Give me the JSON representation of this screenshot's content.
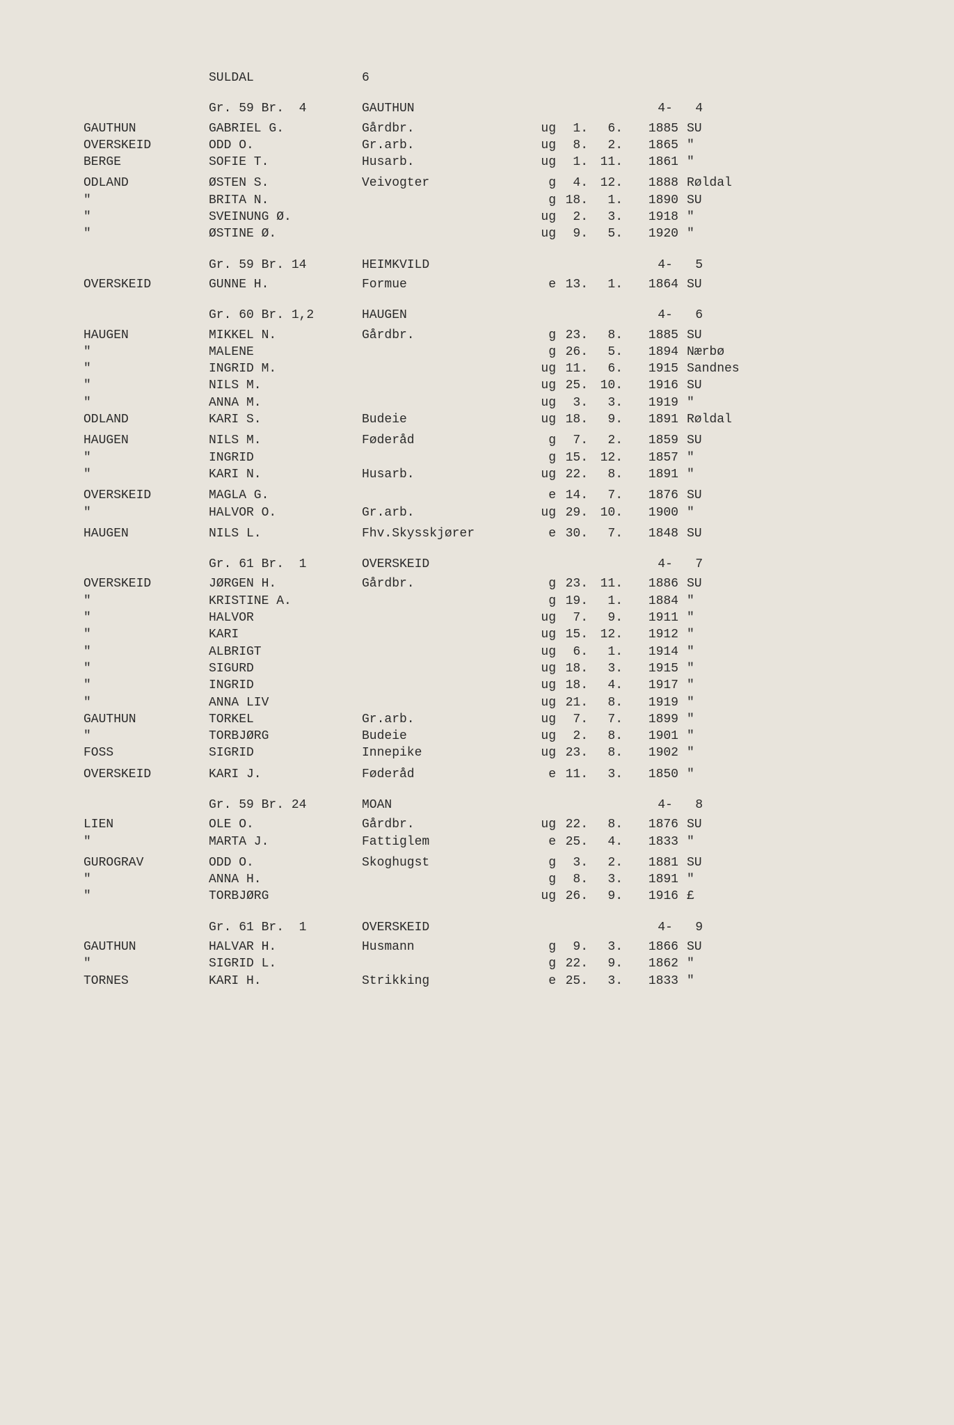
{
  "background_color": "#e8e4dc",
  "text_color": "#2a2a2a",
  "font_family": "Courier New",
  "font_size_pt": 14,
  "title": {
    "region": "SULDAL",
    "page_no": "6"
  },
  "sections": [
    {
      "header": {
        "gr": "Gr. 59 Br.  4",
        "loc": "GAUTHUN",
        "pg": "4-   4"
      },
      "groups": [
        {
          "rows": [
            {
              "surname": "GAUTHUN",
              "name": "GABRIEL G.",
              "occ": "Gårdbr.",
              "status": "ug",
              "day": "1.",
              "mon": "6.",
              "year": "1885",
              "place": "SU"
            },
            {
              "surname": "OVERSKEID",
              "name": "ODD O.",
              "occ": "Gr.arb.",
              "status": "ug",
              "day": "8.",
              "mon": "2.",
              "year": "1865",
              "place": "\""
            },
            {
              "surname": "BERGE",
              "name": "SOFIE T.",
              "occ": "Husarb.",
              "status": "ug",
              "day": "1.",
              "mon": "11.",
              "year": "1861",
              "place": "\""
            }
          ]
        },
        {
          "rows": [
            {
              "surname": "ODLAND",
              "name": "ØSTEN S.",
              "occ": "Veivogter",
              "status": "g",
              "day": "4.",
              "mon": "12.",
              "year": "1888",
              "place": "Røldal"
            },
            {
              "surname": "\"",
              "name": "BRITA N.",
              "occ": "",
              "status": "g",
              "day": "18.",
              "mon": "1.",
              "year": "1890",
              "place": "SU"
            },
            {
              "surname": "\"",
              "name": "SVEINUNG Ø.",
              "occ": "",
              "status": "ug",
              "day": "2.",
              "mon": "3.",
              "year": "1918",
              "place": "\""
            },
            {
              "surname": "\"",
              "name": "ØSTINE Ø.",
              "occ": "",
              "status": "ug",
              "day": "9.",
              "mon": "5.",
              "year": "1920",
              "place": "\""
            }
          ]
        }
      ]
    },
    {
      "header": {
        "gr": "Gr. 59 Br. 14",
        "loc": "HEIMKVILD",
        "pg": "4-   5"
      },
      "groups": [
        {
          "rows": [
            {
              "surname": "OVERSKEID",
              "name": "GUNNE H.",
              "occ": "Formue",
              "status": "e",
              "day": "13.",
              "mon": "1.",
              "year": "1864",
              "place": "SU"
            }
          ]
        }
      ]
    },
    {
      "header": {
        "gr": "Gr. 60 Br. 1,2",
        "loc": "HAUGEN",
        "pg": "4-   6"
      },
      "groups": [
        {
          "rows": [
            {
              "surname": "HAUGEN",
              "name": "MIKKEL N.",
              "occ": "Gårdbr.",
              "status": "g",
              "day": "23.",
              "mon": "8.",
              "year": "1885",
              "place": "SU"
            },
            {
              "surname": "\"",
              "name": "MALENE",
              "occ": "",
              "status": "g",
              "day": "26.",
              "mon": "5.",
              "year": "1894",
              "place": "Nærbø"
            },
            {
              "surname": "\"",
              "name": "INGRID M.",
              "occ": "",
              "status": "ug",
              "day": "11.",
              "mon": "6.",
              "year": "1915",
              "place": "Sandnes"
            },
            {
              "surname": "\"",
              "name": "NILS M.",
              "occ": "",
              "status": "ug",
              "day": "25.",
              "mon": "10.",
              "year": "1916",
              "place": "SU"
            },
            {
              "surname": "\"",
              "name": "ANNA M.",
              "occ": "",
              "status": "ug",
              "day": "3.",
              "mon": "3.",
              "year": "1919",
              "place": "\""
            },
            {
              "surname": "ODLAND",
              "name": "KARI S.",
              "occ": "Budeie",
              "status": "ug",
              "day": "18.",
              "mon": "9.",
              "year": "1891",
              "place": "Røldal"
            }
          ]
        },
        {
          "rows": [
            {
              "surname": "HAUGEN",
              "name": "NILS M.",
              "occ": "Føderåd",
              "status": "g",
              "day": "7.",
              "mon": "2.",
              "year": "1859",
              "place": "SU"
            },
            {
              "surname": "\"",
              "name": "INGRID",
              "occ": "",
              "status": "g",
              "day": "15.",
              "mon": "12.",
              "year": "1857",
              "place": "\""
            },
            {
              "surname": "\"",
              "name": "KARI N.",
              "occ": "Husarb.",
              "status": "ug",
              "day": "22.",
              "mon": "8.",
              "year": "1891",
              "place": "\""
            }
          ]
        },
        {
          "rows": [
            {
              "surname": "OVERSKEID",
              "name": "MAGLA G.",
              "occ": "",
              "status": "e",
              "day": "14.",
              "mon": "7.",
              "year": "1876",
              "place": "SU"
            },
            {
              "surname": "\"",
              "name": "HALVOR O.",
              "occ": "Gr.arb.",
              "status": "ug",
              "day": "29.",
              "mon": "10.",
              "year": "1900",
              "place": "\""
            }
          ]
        },
        {
          "rows": [
            {
              "surname": "HAUGEN",
              "name": "NILS L.",
              "occ": "Fhv.Skysskjører",
              "status": "e",
              "day": "30.",
              "mon": "7.",
              "year": "1848",
              "place": "SU"
            }
          ]
        }
      ]
    },
    {
      "header": {
        "gr": "Gr. 61 Br.  1",
        "loc": "OVERSKEID",
        "pg": "4-   7"
      },
      "groups": [
        {
          "rows": [
            {
              "surname": "OVERSKEID",
              "name": "JØRGEN H.",
              "occ": "Gårdbr.",
              "status": "g",
              "day": "23.",
              "mon": "11.",
              "year": "1886",
              "place": "SU"
            },
            {
              "surname": "\"",
              "name": "KRISTINE A.",
              "occ": "",
              "status": "g",
              "day": "19.",
              "mon": "1.",
              "year": "1884",
              "place": "\""
            },
            {
              "surname": "\"",
              "name": "HALVOR",
              "occ": "",
              "status": "ug",
              "day": "7.",
              "mon": "9.",
              "year": "1911",
              "place": "\""
            },
            {
              "surname": "\"",
              "name": "KARI",
              "occ": "",
              "status": "ug",
              "day": "15.",
              "mon": "12.",
              "year": "1912",
              "place": "\""
            },
            {
              "surname": "\"",
              "name": "ALBRIGT",
              "occ": "",
              "status": "ug",
              "day": "6.",
              "mon": "1.",
              "year": "1914",
              "place": "\""
            },
            {
              "surname": "\"",
              "name": "SIGURD",
              "occ": "",
              "status": "ug",
              "day": "18.",
              "mon": "3.",
              "year": "1915",
              "place": "\""
            },
            {
              "surname": "\"",
              "name": "INGRID",
              "occ": "",
              "status": "ug",
              "day": "18.",
              "mon": "4.",
              "year": "1917",
              "place": "\""
            },
            {
              "surname": "\"",
              "name": "ANNA LIV",
              "occ": "",
              "status": "ug",
              "day": "21.",
              "mon": "8.",
              "year": "1919",
              "place": "\""
            },
            {
              "surname": "GAUTHUN",
              "name": "TORKEL",
              "occ": "Gr.arb.",
              "status": "ug",
              "day": "7.",
              "mon": "7.",
              "year": "1899",
              "place": "\""
            },
            {
              "surname": "\"",
              "name": "TORBJØRG",
              "occ": "Budeie",
              "status": "ug",
              "day": "2.",
              "mon": "8.",
              "year": "1901",
              "place": "\""
            },
            {
              "surname": "FOSS",
              "name": "SIGRID",
              "occ": "Innepike",
              "status": "ug",
              "day": "23.",
              "mon": "8.",
              "year": "1902",
              "place": "\""
            }
          ]
        },
        {
          "rows": [
            {
              "surname": "OVERSKEID",
              "name": "KARI J.",
              "occ": "Føderåd",
              "status": "e",
              "day": "11.",
              "mon": "3.",
              "year": "1850",
              "place": "\""
            }
          ]
        }
      ]
    },
    {
      "header": {
        "gr": "Gr. 59 Br. 24",
        "loc": "MOAN",
        "pg": "4-   8"
      },
      "groups": [
        {
          "rows": [
            {
              "surname": "LIEN",
              "name": "OLE O.",
              "occ": "Gårdbr.",
              "status": "ug",
              "day": "22.",
              "mon": "8.",
              "year": "1876",
              "place": "SU"
            },
            {
              "surname": "\"",
              "name": "MARTA J.",
              "occ": "Fattiglem",
              "status": "e",
              "day": "25.",
              "mon": "4.",
              "year": "1833",
              "place": "\""
            }
          ]
        },
        {
          "rows": [
            {
              "surname": "GUROGRAV",
              "name": "ODD O.",
              "occ": "Skoghugst",
              "status": "g",
              "day": "3.",
              "mon": "2.",
              "year": "1881",
              "place": "SU"
            },
            {
              "surname": "\"",
              "name": "ANNA H.",
              "occ": "",
              "status": "g",
              "day": "8.",
              "mon": "3.",
              "year": "1891",
              "place": "\""
            },
            {
              "surname": "\"",
              "name": "TORBJØRG",
              "occ": "",
              "status": "ug",
              "day": "26.",
              "mon": "9.",
              "year": "1916",
              "place": "£"
            }
          ]
        }
      ]
    },
    {
      "header": {
        "gr": "Gr. 61 Br.  1",
        "loc": "OVERSKEID",
        "pg": "4-   9"
      },
      "groups": [
        {
          "rows": [
            {
              "surname": "GAUTHUN",
              "name": "HALVAR H.",
              "occ": "Husmann",
              "status": "g",
              "day": "9.",
              "mon": "3.",
              "year": "1866",
              "place": "SU"
            },
            {
              "surname": "\"",
              "name": "SIGRID L.",
              "occ": "",
              "status": "g",
              "day": "22.",
              "mon": "9.",
              "year": "1862",
              "place": "\""
            },
            {
              "surname": "TORNES",
              "name": "KARI H.",
              "occ": "Strikking",
              "status": "e",
              "day": "25.",
              "mon": "3.",
              "year": "1833",
              "place": "\""
            }
          ]
        }
      ]
    }
  ]
}
